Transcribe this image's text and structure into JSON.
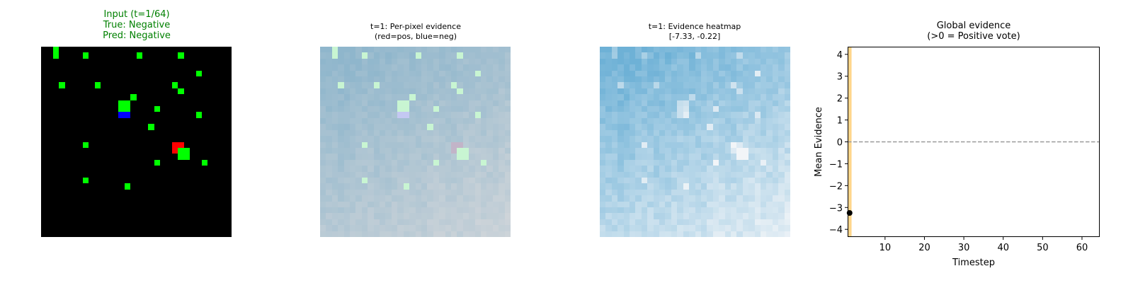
{
  "panels": {
    "input": {
      "title_lines": [
        "Input (t=1/64)",
        "True: Negative",
        "Pred: Negative"
      ]
    },
    "per_pixel": {
      "title_lines": [
        "t=1: Per-pixel evidence",
        "(red=pos, blue=neg)"
      ]
    },
    "heatmap": {
      "title_lines": [
        "t=1: Evidence heatmap",
        "[-7.33, -0.22]"
      ],
      "range": [
        -7.33,
        -0.22
      ]
    },
    "global": {
      "title_lines": [
        "Global evidence",
        "(>0 = Positive vote)"
      ]
    }
  },
  "input_grid": {
    "size": 32,
    "green": [
      [
        0,
        2
      ],
      [
        1,
        2
      ],
      [
        1,
        7
      ],
      [
        1,
        16
      ],
      [
        1,
        23
      ],
      [
        4,
        26
      ],
      [
        6,
        3
      ],
      [
        6,
        9
      ],
      [
        6,
        22
      ],
      [
        7,
        23
      ],
      [
        8,
        15
      ],
      [
        9,
        13
      ],
      [
        9,
        14
      ],
      [
        10,
        13
      ],
      [
        10,
        14
      ],
      [
        10,
        19
      ],
      [
        11,
        26
      ],
      [
        13,
        18
      ],
      [
        16,
        7
      ],
      [
        17,
        23
      ],
      [
        17,
        24
      ],
      [
        18,
        23
      ],
      [
        18,
        24
      ],
      [
        19,
        19
      ],
      [
        19,
        27
      ],
      [
        22,
        7
      ],
      [
        23,
        14
      ]
    ],
    "blue": [
      [
        11,
        13
      ],
      [
        11,
        14
      ]
    ],
    "red": [
      [
        16,
        22
      ],
      [
        16,
        23
      ],
      [
        17,
        22
      ]
    ],
    "colors": {
      "green": "#00ff00",
      "blue": "#0000ff",
      "red": "#ff0000",
      "background": "#000000"
    }
  },
  "chart_data": {
    "type": "line",
    "title": "Global evidence\n(>0 = Positive vote)",
    "xlabel": "Timestep",
    "ylabel": "Mean Evidence",
    "xlim": [
      0.5,
      64.5
    ],
    "ylim": [
      -4.35,
      4.35
    ],
    "xticks": [
      "10",
      "20",
      "30",
      "40",
      "50",
      "60"
    ],
    "xtick_values": [
      10,
      20,
      30,
      40,
      50,
      60
    ],
    "yticks": [
      "4",
      "3",
      "2",
      "1",
      "0",
      "−1",
      "−2",
      "−3",
      "−4"
    ],
    "ytick_values": [
      4,
      3,
      2,
      1,
      0,
      -1,
      -2,
      -3,
      -4
    ],
    "series": [
      {
        "name": "mean evidence",
        "x": [
          1
        ],
        "y": [
          -3.25
        ],
        "color": "#000000"
      }
    ],
    "hline": {
      "y": 0,
      "style": "dashed",
      "color": "#999999"
    },
    "highlight_span": {
      "x": [
        0.5,
        1.5
      ],
      "color": "#ffd27f"
    }
  }
}
